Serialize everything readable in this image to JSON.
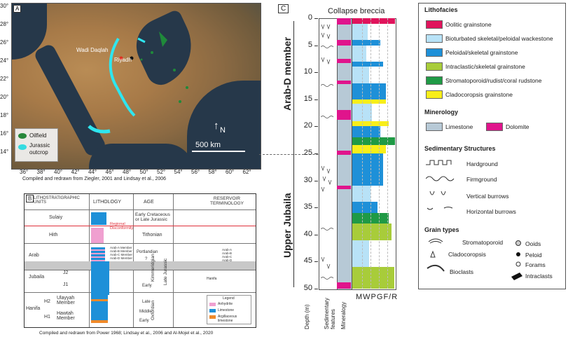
{
  "panel_a": {
    "letter": "A",
    "legend": {
      "oilfield": "Oilfield",
      "jurassic": "Jurassic",
      "outcrop": "outcrop"
    },
    "places": {
      "wadi": "Wadi Daqlah",
      "riyadh": "Riyadh"
    },
    "north": "N",
    "scale": "500 km",
    "x_ticks": [
      "36°",
      "38°",
      "40°",
      "42°",
      "44°",
      "46°",
      "48°",
      "50°",
      "52°",
      "54°",
      "56°",
      "58°",
      "60°",
      "62°"
    ],
    "y_ticks": [
      "30°",
      "28°",
      "26°",
      "24°",
      "22°",
      "20°",
      "18°",
      "16°",
      "14°"
    ],
    "caption": "Compiled and redrawn from Ziegler, 2001 and  Lindsay et al., 2006",
    "colors": {
      "oilfield": "#1f8a3a",
      "jurassic": "#2ee6ef"
    }
  },
  "panel_b": {
    "letter": "B",
    "headers": {
      "units": "LITHOSTRATIGRAPHIC UNITS",
      "lithology": "LITHOLOGY",
      "age": "AGE",
      "reservoir": "RESERVOIR TERMINOLOGY"
    },
    "units": {
      "sulaiy": "Sulaiy",
      "hith": "Hith",
      "arab": "Arab",
      "jubaila": "Jubaila",
      "j2": "J2",
      "j1": "J1",
      "hanifa": "Hanifa",
      "h2": "H2",
      "h1": "H1",
      "ulayyah": "Ulayyah Member",
      "hawtah": "Hawtah Member"
    },
    "arab_members": [
      "Arab-A Member",
      "Arab-B Member",
      "Arab-C Member",
      "Arab-D Member"
    ],
    "age": {
      "early_cret": "Early Cretaceous or Late Jurassic",
      "tithonian": "Tithonian",
      "portlandian": "Portlandian",
      "q": "?",
      "early": "Early",
      "late": "Late",
      "middle": "Middle",
      "early2": "Early",
      "kimmeridgian": "Kimmeridgian",
      "late_jurassic": "Late Jurassic",
      "oxfordian": "Oxfordian"
    },
    "reservoir": [
      "Arab-A",
      "Arab-B",
      "Arab-C",
      "Arab-D"
    ],
    "reservoir_extra": "Hanifa",
    "disconformity": "Regional Disconformity",
    "mini_legend": {
      "title": "Legend",
      "items": [
        "Anhydrite",
        "Limestone",
        "Argillaceous limestone"
      ]
    },
    "caption": "Compiled and redrawn from Power 1968; Lindsay et al., 2006 and  Al-Mojel et al., 2020"
  },
  "panel_c": {
    "letter": "C",
    "title": "Collapse breccia",
    "member_top": "Arab-D member",
    "member_bottom": "Upper Jubaila",
    "depth_ticks": [
      "0",
      "5",
      "10",
      "15",
      "20",
      "25",
      "30",
      "35",
      "40",
      "45",
      "50"
    ],
    "bottom_labels": {
      "depth": "Depth (m)",
      "features": "Sedimentary features",
      "mineralogy": "Mineralogy",
      "texture": "MWPGF/R"
    },
    "depth_max": 50
  },
  "legend": {
    "lithofacies_title": "Lithofacies",
    "lithofacies": [
      {
        "label": "Oolitic grainstone",
        "color": "#e0145c"
      },
      {
        "label": "Bioturbated skeletal/peloidal wackestone",
        "color": "#b8e2f7"
      },
      {
        "label": "Peloidal/skeletal grainstone",
        "color": "#1e90d8"
      },
      {
        "label": "Intraclastic/skeletal grainstone",
        "color": "#a8cc3a"
      },
      {
        "label": "Stromatoporoid/rudist/coral rudstone",
        "color": "#1f9a45"
      },
      {
        "label": "Cladocoropsis grainstone",
        "color": "#f8ee1a"
      }
    ],
    "mineralogy_title": "Minerology",
    "mineralogy": [
      {
        "label": "Limestone",
        "color": "#b7c9d6"
      },
      {
        "label": "Dolomite",
        "color": "#e0148c"
      }
    ],
    "structures_title": "Sedimentary Structures",
    "structures": [
      "Hardground",
      "Firmground",
      "Vertical burrows",
      "Horizontal burrows"
    ],
    "grain_title": "Grain types",
    "grains": [
      "Stromatoporoid",
      "Ooids",
      "Cladocoropsis",
      "Peloid",
      "Forams",
      "Bioclasts",
      "Intraclasts"
    ]
  }
}
